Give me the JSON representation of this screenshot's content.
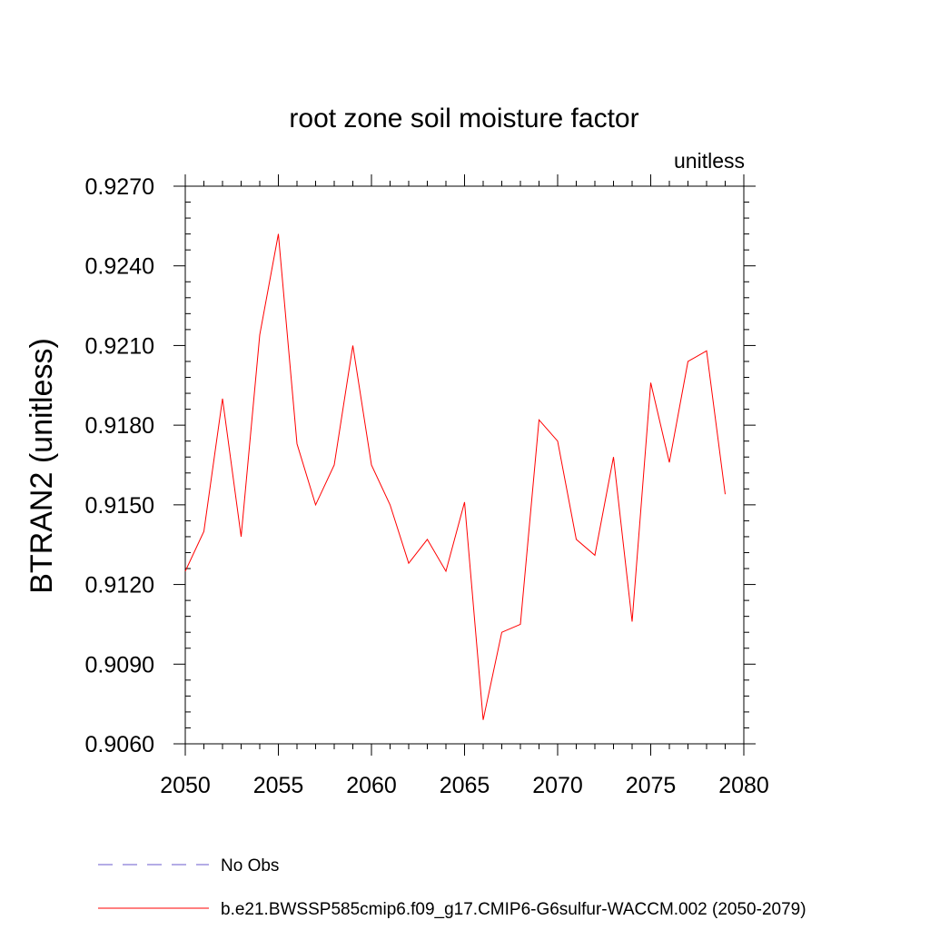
{
  "chart_data": {
    "type": "line",
    "title": "root zone soil moisture factor",
    "units": "unitless",
    "xlabel": "",
    "ylabel": "BTRAN2  (unitless)",
    "xlim": [
      2050,
      2080
    ],
    "ylim": [
      0.906,
      0.927
    ],
    "x_ticks": [
      "2050",
      "2055",
      "2060",
      "2065",
      "2070",
      "2075",
      "2080"
    ],
    "y_ticks": [
      "0.9060",
      "0.9090",
      "0.9120",
      "0.9150",
      "0.9180",
      "0.9210",
      "0.9240",
      "0.9270"
    ],
    "grid": false,
    "legend_position": "bottom",
    "x": [
      2050,
      2051,
      2052,
      2053,
      2054,
      2055,
      2056,
      2057,
      2058,
      2059,
      2060,
      2061,
      2062,
      2063,
      2064,
      2065,
      2066,
      2067,
      2068,
      2069,
      2070,
      2071,
      2072,
      2073,
      2074,
      2075,
      2076,
      2077,
      2078,
      2079
    ],
    "series": [
      {
        "name": "b.e21.BWSSP585cmip6.f09_g17.CMIP6-G6sulfur-WACCM.002 (2050-2079)",
        "color": "#ff0000",
        "values": [
          0.9125,
          0.914,
          0.919,
          0.9138,
          0.9214,
          0.9252,
          0.9173,
          0.915,
          0.9165,
          0.921,
          0.9165,
          0.915,
          0.9128,
          0.9137,
          0.9125,
          0.9151,
          0.9069,
          0.9102,
          0.9105,
          0.9182,
          0.9174,
          0.9137,
          0.9131,
          0.9168,
          0.9106,
          0.9196,
          0.9166,
          0.9204,
          0.9208,
          0.9154
        ]
      }
    ],
    "legend": [
      {
        "label": "No Obs",
        "color": "#6a5acd",
        "style": "dashed"
      },
      {
        "label": "b.e21.BWSSP585cmip6.f09_g17.CMIP6-G6sulfur-WACCM.002 (2050-2079)",
        "color": "#ff0000",
        "style": "solid"
      }
    ]
  }
}
